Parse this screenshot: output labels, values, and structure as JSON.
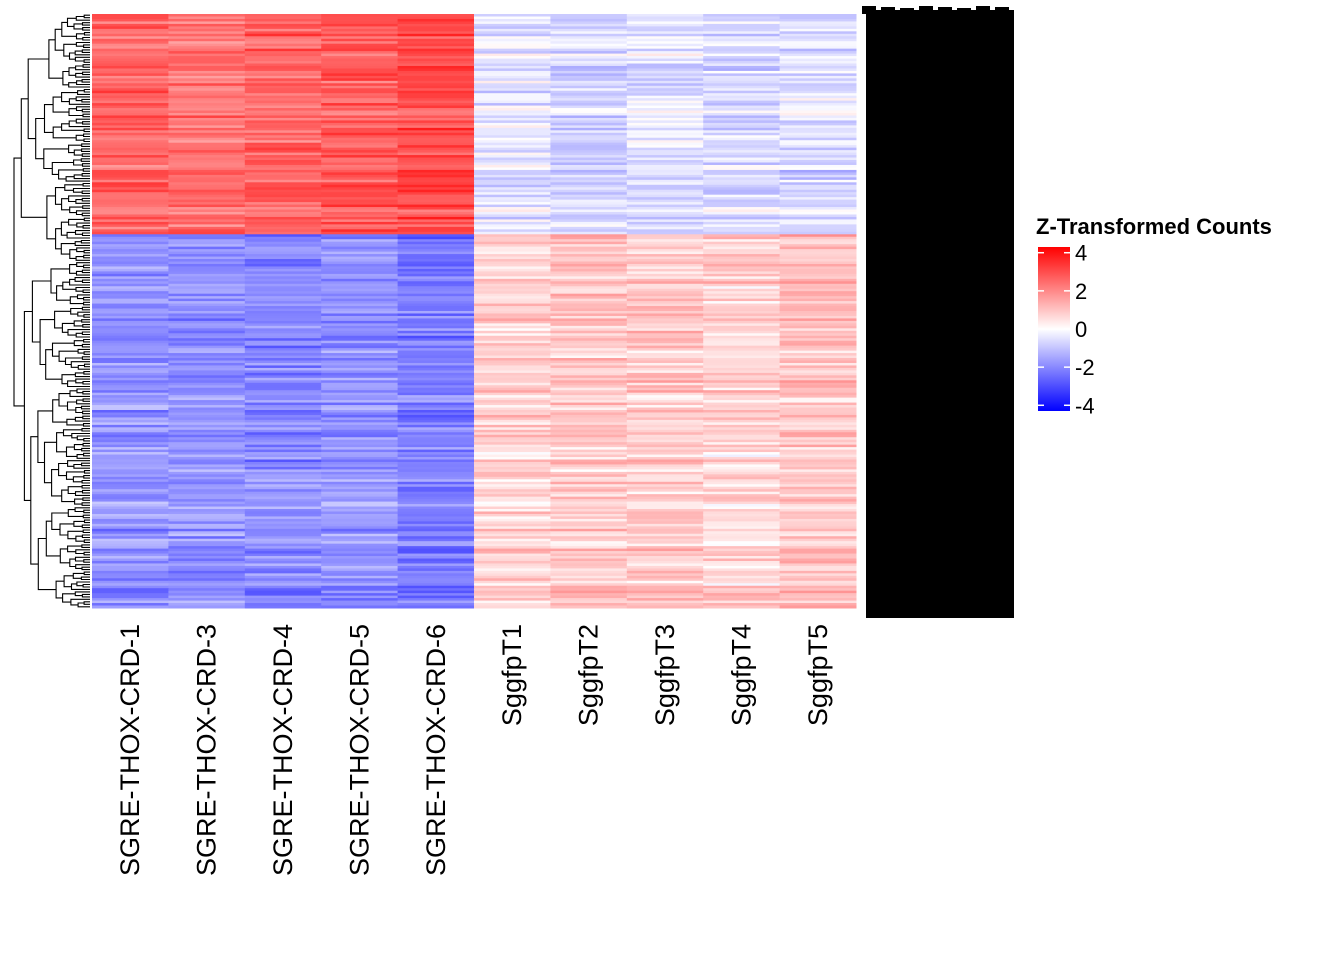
{
  "chart_data": {
    "type": "heatmap",
    "title": "",
    "columns": [
      "SGRE-THOX-CRD-1",
      "SGRE-THOX-CRD-3",
      "SGRE-THOX-CRD-4",
      "SGRE-THOX-CRD-5",
      "SGRE-THOX-CRD-6",
      "SggfpT1",
      "SggfpT2",
      "SggfpT3",
      "SggfpT4",
      "SggfpT5"
    ],
    "row_count": 240,
    "row_labels_legible": false,
    "dendrogram": "rows",
    "clusters": [
      {
        "name": "upper",
        "row_fraction": 0.37,
        "column_means": [
          2.6,
          2.4,
          2.6,
          2.8,
          3.0,
          -0.5,
          -0.7,
          -0.5,
          -0.6,
          -0.6
        ]
      },
      {
        "name": "lower",
        "row_fraction": 0.63,
        "column_means": [
          -1.8,
          -1.9,
          -2.0,
          -1.8,
          -2.2,
          0.8,
          0.9,
          0.9,
          0.7,
          1.0
        ]
      }
    ],
    "colorbar": {
      "title": "Z-Transformed Counts",
      "ticks": [
        4,
        2,
        0,
        -2,
        -4
      ],
      "tick_labels": [
        "4",
        "2",
        "0",
        "-2",
        "-4"
      ],
      "range": [
        -4.3,
        4.3
      ],
      "low_color": "#0000ff",
      "mid_color": "#ffffff",
      "high_color": "#ff0000"
    }
  }
}
